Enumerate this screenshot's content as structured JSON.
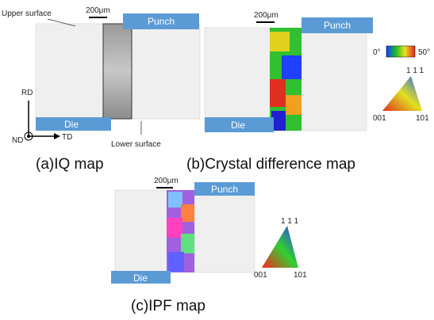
{
  "panels": [
    {
      "caption": "(a)IQ map",
      "scale_bar": "200μm",
      "punch": "Punch",
      "die": "Die",
      "upper_label": "Upper surface",
      "lower_label": "Lower surface",
      "axes": {
        "rd": "RD",
        "td": "TD",
        "nd": "ND"
      }
    },
    {
      "caption": "(b)Crystal difference map",
      "scale_bar": "200μm",
      "punch": "Punch",
      "die": "Die",
      "color_scale": {
        "min": "0°",
        "max": "50°"
      },
      "triangle": {
        "top": "1 1 1",
        "left": "001",
        "right": "101"
      }
    },
    {
      "caption": "(c)IPF map",
      "scale_bar": "200μm",
      "punch": "Punch",
      "die": "Die",
      "triangle": {
        "top": "1 1 1",
        "left": "001",
        "right": "101"
      }
    }
  ]
}
